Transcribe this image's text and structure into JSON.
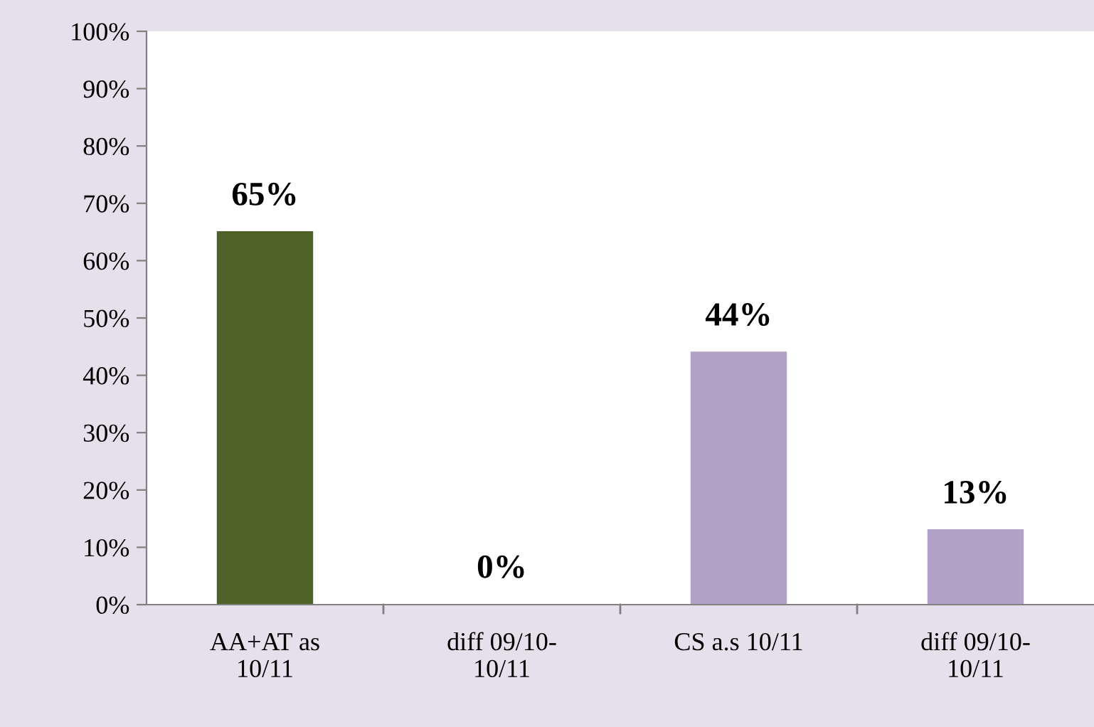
{
  "chart_data": {
    "type": "bar",
    "categories": [
      "AA+AT as\n10/11",
      "diff 09/10-\n10/11",
      "CS a.s 10/11",
      "diff 09/10-\n10/11"
    ],
    "values": [
      65,
      0,
      44,
      13
    ],
    "colors": [
      "#4f6228",
      "#b3a2c7",
      "#b3a2c7",
      "#b3a2c7"
    ],
    "value_labels": [
      "65%",
      "0%",
      "44%",
      "13%"
    ],
    "ylim": [
      0,
      100
    ],
    "yticks": [
      {
        "value": 0,
        "label": "0%"
      },
      {
        "value": 10,
        "label": "10%"
      },
      {
        "value": 20,
        "label": "20%"
      },
      {
        "value": 30,
        "label": "30%"
      },
      {
        "value": 40,
        "label": "40%"
      },
      {
        "value": 50,
        "label": "50%"
      },
      {
        "value": 60,
        "label": "60%"
      },
      {
        "value": 70,
        "label": "70%"
      },
      {
        "value": 80,
        "label": "80%"
      },
      {
        "value": 90,
        "label": "90%"
      },
      {
        "value": 100,
        "label": "100%"
      }
    ],
    "grid": false,
    "legend": false
  }
}
